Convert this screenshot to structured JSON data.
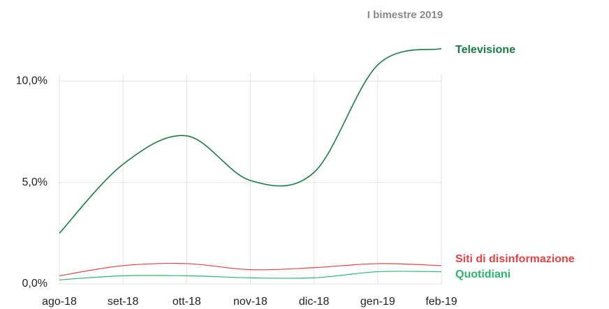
{
  "chart_data": {
    "type": "line",
    "annotation": "I bimestre 2019",
    "categories": [
      "ago-18",
      "set-18",
      "ott-18",
      "nov-18",
      "dic-18",
      "gen-19",
      "feb-19"
    ],
    "series": [
      {
        "name": "Televisione",
        "color": "#1a7a44",
        "values": [
          2.5,
          5.9,
          7.3,
          5.1,
          5.5,
          10.8,
          11.6
        ]
      },
      {
        "name": "Siti di disinformazione",
        "color": "#e04444",
        "values": [
          0.4,
          0.9,
          1.0,
          0.7,
          0.8,
          1.0,
          0.9
        ]
      },
      {
        "name": "Quotidiani",
        "color": "#2db56e",
        "values": [
          0.2,
          0.4,
          0.4,
          0.3,
          0.3,
          0.6,
          0.6
        ]
      }
    ],
    "ylim": [
      0,
      14
    ],
    "yticks": [
      {
        "value": 0,
        "label": "0,0%"
      },
      {
        "value": 5,
        "label": "5,0%"
      },
      {
        "value": 10,
        "label": "10,0%"
      }
    ],
    "grid": true
  }
}
